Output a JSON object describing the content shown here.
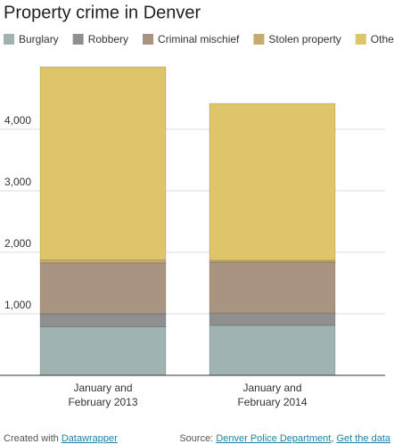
{
  "chart_data": {
    "type": "stacked-bar",
    "title": "Property crime in Denver",
    "categories": [
      "January and February 2013",
      "January and February 2014"
    ],
    "series": [
      {
        "name": "Burglary",
        "color": "#9fb3b3",
        "values": [
          790,
          810
        ]
      },
      {
        "name": "Robbery",
        "color": "#8f8f8f",
        "values": [
          210,
          200
        ]
      },
      {
        "name": "Criminal mischief",
        "color": "#a89480",
        "values": [
          830,
          830
        ]
      },
      {
        "name": "Stolen property",
        "color": "#c6ab6f",
        "values": [
          45,
          30
        ]
      },
      {
        "name": "Other",
        "color": "#dfc569",
        "values": [
          3140,
          2550
        ]
      }
    ],
    "ylim": [
      0,
      5000
    ],
    "yticks": [
      {
        "value": 1000,
        "label": "1,000"
      },
      {
        "value": 2000,
        "label": "2,000"
      },
      {
        "value": 3000,
        "label": "3,000"
      },
      {
        "value": 4000,
        "label": "4,000"
      }
    ],
    "grid": true
  },
  "footer": {
    "credit": "Created with",
    "credit_link": "Datawrapper",
    "source_label": "Source:",
    "source": "Denver Police Department",
    "separator": ",",
    "get_data": "Get the data"
  }
}
